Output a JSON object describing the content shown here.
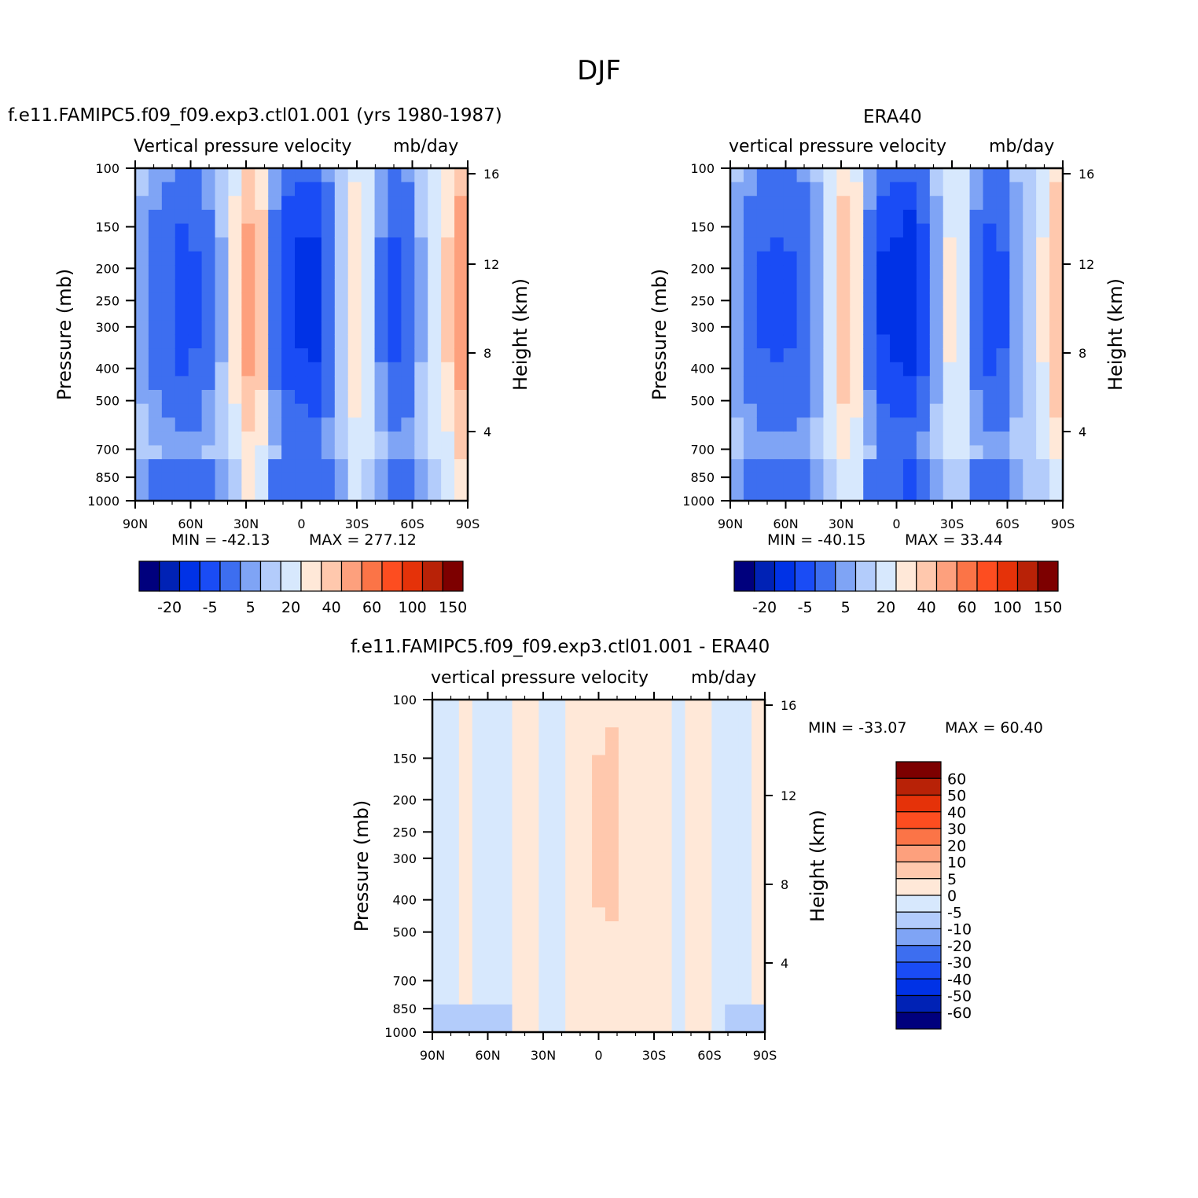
{
  "figure": {
    "title": "DJF"
  },
  "panels": {
    "model": {
      "title": "f.e11.FAMIPC5.f09_f09.exp3.ctl01.001 (yrs 1980-1987)",
      "subtitle_left": "Vertical pressure velocity",
      "subtitle_right": "mb/day",
      "min_label": "MIN = -42.13",
      "max_label": "MAX = 277.12"
    },
    "obs": {
      "title": "ERA40",
      "subtitle_left": "vertical pressure velocity",
      "subtitle_right": "mb/day",
      "min_label": "MIN = -40.15",
      "max_label": "MAX = 33.44"
    },
    "diff": {
      "title": "f.e11.FAMIPC5.f09_f09.exp3.ctl01.001 - ERA40",
      "subtitle_left": "vertical pressure velocity",
      "subtitle_right": "mb/day",
      "min_label": "MIN = -33.07",
      "max_label": "MAX = 60.40"
    }
  },
  "chart_data": [
    {
      "type": "heatmap",
      "title": "f.e11.FAMIPC5.f09_f09.exp3.ctl01.001 (yrs 1980-1987)",
      "variable": "Vertical pressure velocity",
      "units": "mb/day",
      "xlabel": "",
      "ylabel": "Pressure (mb)",
      "ylabel_right": "Height (km)",
      "x_ticks": [
        "90N",
        "60N",
        "30N",
        "0",
        "30S",
        "60S",
        "90S"
      ],
      "y_ticks": [
        100,
        150,
        200,
        250,
        300,
        400,
        500,
        700,
        850,
        1000
      ],
      "y_log_scale": true,
      "y_inverted": true,
      "y_right_ticks": [
        16,
        12,
        8,
        4
      ],
      "min": -42.13,
      "max": 277.12,
      "colorbar_levels_labeled": [
        "-20",
        "-5",
        "5",
        "20",
        "40",
        "60",
        "100",
        "150"
      ],
      "colorbar_orientation": "horizontal",
      "colors": [
        "#00007d",
        "#0022b5",
        "#0032e6",
        "#1a4cf5",
        "#3d6ef0",
        "#7fa4f5",
        "#b3ccfb",
        "#d7e8fd",
        "#ffe8d8",
        "#ffc8ad",
        "#fda07d",
        "#fb7447",
        "#fd4d20",
        "#e53209",
        "#b82207",
        "#7d0000"
      ],
      "column_values": [
        -8,
        -14,
        -20,
        -26,
        -22,
        -14,
        -6,
        8,
        25,
        14,
        -14,
        -30,
        -34,
        -36,
        -20,
        -4,
        10,
        4,
        -12,
        -24,
        -20,
        -6,
        0,
        12,
        30
      ],
      "grid": false
    },
    {
      "type": "heatmap",
      "title": "ERA40",
      "variable": "vertical pressure velocity",
      "units": "mb/day",
      "xlabel": "",
      "ylabel": "Pressure (mb)",
      "ylabel_right": "Height (km)",
      "x_ticks": [
        "90N",
        "60N",
        "30N",
        "0",
        "30S",
        "60S",
        "90S"
      ],
      "y_ticks": [
        100,
        150,
        200,
        250,
        300,
        400,
        500,
        700,
        850,
        1000
      ],
      "y_log_scale": true,
      "y_inverted": true,
      "y_right_ticks": [
        16,
        12,
        8,
        4
      ],
      "min": -40.15,
      "max": 33.44,
      "colorbar_levels_labeled": [
        "-20",
        "-5",
        "5",
        "20",
        "40",
        "60",
        "100",
        "150"
      ],
      "colorbar_orientation": "horizontal",
      "colors": [
        "#00007d",
        "#0022b5",
        "#0032e6",
        "#1a4cf5",
        "#3d6ef0",
        "#7fa4f5",
        "#b3ccfb",
        "#d7e8fd",
        "#ffe8d8",
        "#ffc8ad",
        "#fda07d",
        "#fb7447",
        "#fd4d20",
        "#e53209",
        "#b82207",
        "#7d0000"
      ],
      "column_values": [
        -10,
        -16,
        -22,
        -24,
        -22,
        -18,
        -10,
        2,
        16,
        10,
        -14,
        -32,
        -36,
        -40,
        -26,
        -8,
        6,
        2,
        -14,
        -26,
        -22,
        -10,
        -2,
        6,
        20
      ],
      "grid": false
    },
    {
      "type": "heatmap",
      "title": "f.e11.FAMIPC5.f09_f09.exp3.ctl01.001 - ERA40",
      "variable": "vertical pressure velocity",
      "units": "mb/day",
      "xlabel": "",
      "ylabel": "Pressure (mb)",
      "ylabel_right": "Height (km)",
      "x_ticks": [
        "90N",
        "60N",
        "30N",
        "0",
        "30S",
        "60S",
        "90S"
      ],
      "y_ticks": [
        100,
        150,
        200,
        250,
        300,
        400,
        500,
        700,
        850,
        1000
      ],
      "y_log_scale": true,
      "y_inverted": true,
      "y_right_ticks": [
        16,
        12,
        8,
        4
      ],
      "min": -33.07,
      "max": 60.4,
      "colorbar_levels_labeled": [
        "60",
        "50",
        "40",
        "30",
        "20",
        "10",
        "5",
        "0",
        "-5",
        "-10",
        "-20",
        "-30",
        "-40",
        "-50",
        "-60"
      ],
      "colorbar_orientation": "vertical",
      "colors": [
        "#7d0000",
        "#b82207",
        "#e53209",
        "#fd4d20",
        "#fb7447",
        "#fda07d",
        "#ffc8ad",
        "#ffe8d8",
        "#d7e8fd",
        "#b3ccfb",
        "#7fa4f5",
        "#3d6ef0",
        "#1a4cf5",
        "#0032e6",
        "#0022b5",
        "#00007d"
      ],
      "column_values": [
        -2,
        -3,
        1,
        -2,
        -3,
        -2,
        2,
        3,
        -4,
        -2,
        1,
        3,
        7,
        10,
        4,
        2,
        3,
        1,
        -1,
        2,
        1,
        -2,
        -3,
        -2,
        2
      ],
      "grid": false
    }
  ]
}
